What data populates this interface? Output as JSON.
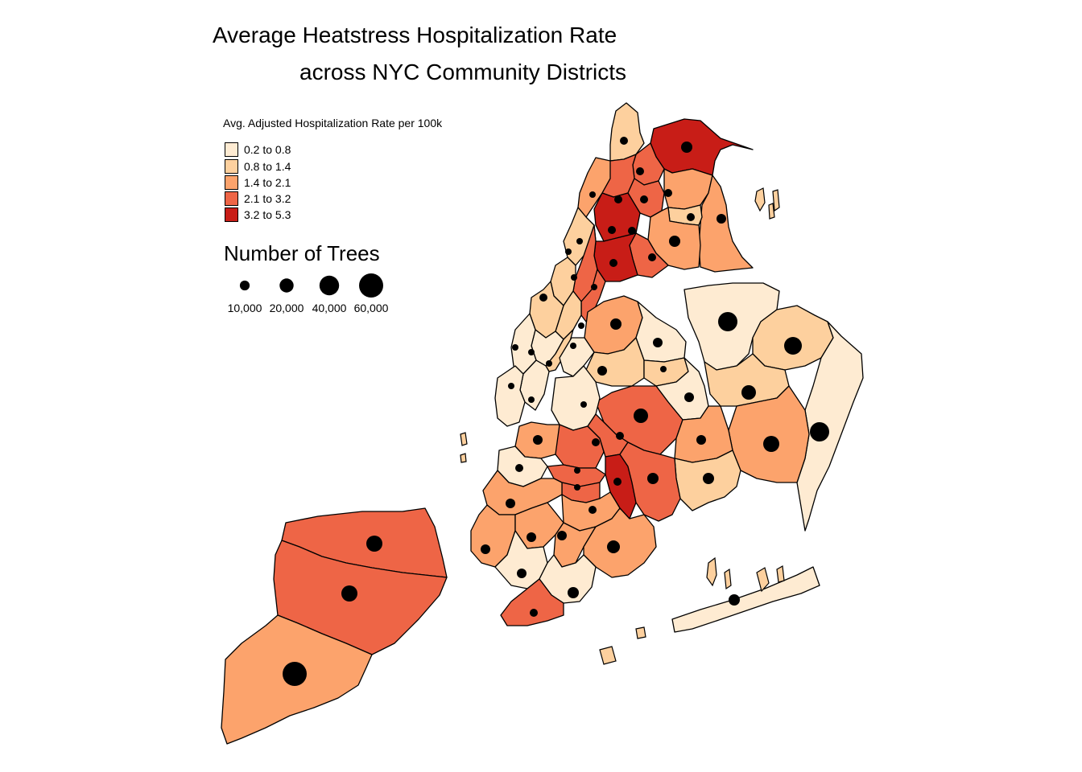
{
  "title_line1": "Average Heatstress Hospitalization Rate",
  "title_line2": "across NYC Community Districts",
  "colors": {
    "c1": "#feebd2",
    "c2": "#fdd09e",
    "c3": "#fca36c",
    "c4": "#ee6546",
    "c5": "#c81d17",
    "stroke": "#000000",
    "dot": "#000000"
  },
  "fill_legend": {
    "title": "Avg. Adjusted Hospitalization Rate per 100k",
    "items": [
      {
        "label": "0.2 to 0.8",
        "color": "#feebd2"
      },
      {
        "label": "0.8 to 1.4",
        "color": "#fdd09e"
      },
      {
        "label": "1.4 to 2.1",
        "color": "#fca36c"
      },
      {
        "label": "2.1 to 3.2",
        "color": "#ee6546"
      },
      {
        "label": "3.2 to 5.3",
        "color": "#c81d17"
      }
    ]
  },
  "size_legend": {
    "title": "Number of Trees",
    "items": [
      {
        "label": "10,000",
        "value": 10000
      },
      {
        "label": "20,000",
        "value": 20000
      },
      {
        "label": "40,000",
        "value": 40000
      },
      {
        "label": "60,000",
        "value": 60000
      }
    ]
  }
}
